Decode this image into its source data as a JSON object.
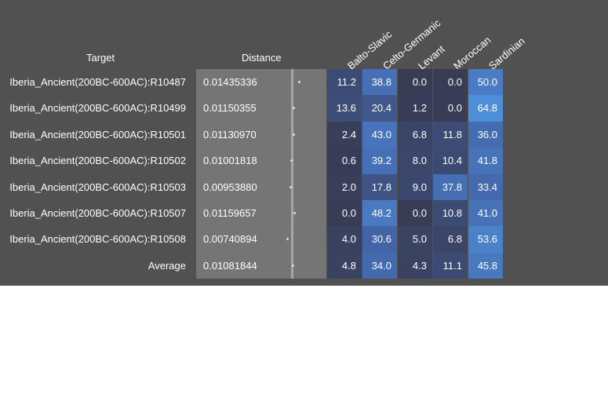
{
  "headers": {
    "target": "Target",
    "distance": "Distance"
  },
  "columns": [
    "Balto-Slavic",
    "Celto-Germanic",
    "Levant",
    "Moroccan",
    "Sardinian"
  ],
  "rows": [
    {
      "target": "Iberia_Ancient(200BC-600AC):R10487",
      "distance": "0.01435336",
      "values": [
        "11.2",
        "38.8",
        "0.0",
        "0.0",
        "50.0"
      ]
    },
    {
      "target": "Iberia_Ancient(200BC-600AC):R10499",
      "distance": "0.01150355",
      "values": [
        "13.6",
        "20.4",
        "1.2",
        "0.0",
        "64.8"
      ]
    },
    {
      "target": "Iberia_Ancient(200BC-600AC):R10501",
      "distance": "0.01130970",
      "values": [
        "2.4",
        "43.0",
        "6.8",
        "11.8",
        "36.0"
      ]
    },
    {
      "target": "Iberia_Ancient(200BC-600AC):R10502",
      "distance": "0.01001818",
      "values": [
        "0.6",
        "39.2",
        "8.0",
        "10.4",
        "41.8"
      ]
    },
    {
      "target": "Iberia_Ancient(200BC-600AC):R10503",
      "distance": "0.00953880",
      "values": [
        "2.0",
        "17.8",
        "9.0",
        "37.8",
        "33.4"
      ]
    },
    {
      "target": "Iberia_Ancient(200BC-600AC):R10507",
      "distance": "0.01159657",
      "values": [
        "0.0",
        "48.2",
        "0.0",
        "10.8",
        "41.0"
      ]
    },
    {
      "target": "Iberia_Ancient(200BC-600AC):R10508",
      "distance": "0.00740894",
      "values": [
        "4.0",
        "30.6",
        "5.0",
        "6.8",
        "53.6"
      ]
    }
  ],
  "average": {
    "target": "Average",
    "distance": "0.01081844",
    "values": [
      "4.8",
      "34.0",
      "4.3",
      "11.1",
      "45.8"
    ]
  },
  "colors": {
    "panel": "#515151",
    "distance_bg": "#757575",
    "low": "#383c55",
    "high": "#4e8ed8"
  }
}
